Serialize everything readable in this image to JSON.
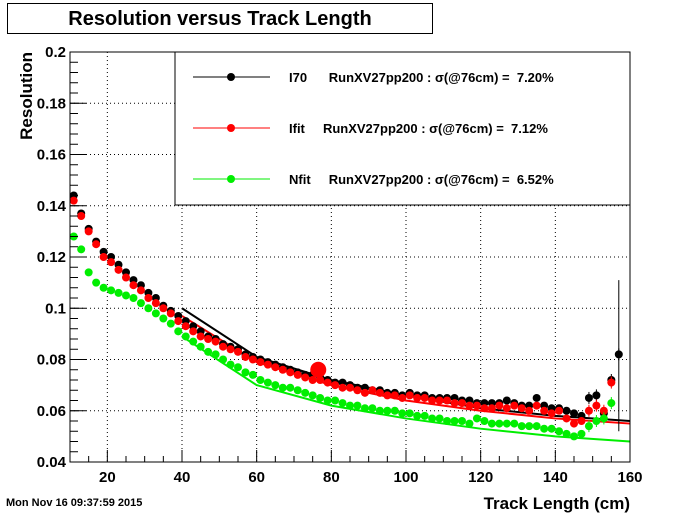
{
  "title": "Resolution versus Track Length",
  "footer_timestamp": "Mon Nov 16 09:37:59 2015",
  "chart_data": {
    "type": "scatter",
    "title": "Resolution versus Track Length",
    "xlabel": "Track Length (cm)",
    "ylabel": "Resolution",
    "xlim": [
      10,
      160
    ],
    "ylim": [
      0.04,
      0.2
    ],
    "x_ticks": [
      "20",
      "40",
      "60",
      "80",
      "100",
      "120",
      "140",
      "160"
    ],
    "y_ticks": [
      "0.04",
      "0.06",
      "0.08",
      "0.1",
      "0.12",
      "0.14",
      "0.16",
      "0.18",
      "0.2"
    ],
    "grid": true,
    "legend_position": "top-right",
    "series": [
      {
        "name": "I70",
        "legend": "I70      RunXV27pp200 : σ(@76cm) =  7.20%",
        "color": "#000000",
        "points": [
          [
            11,
            0.144
          ],
          [
            13,
            0.137
          ],
          [
            15,
            0.131
          ],
          [
            17,
            0.126
          ],
          [
            19,
            0.122
          ],
          [
            21,
            0.12
          ],
          [
            23,
            0.117
          ],
          [
            25,
            0.114
          ],
          [
            27,
            0.111
          ],
          [
            29,
            0.109
          ],
          [
            31,
            0.106
          ],
          [
            33,
            0.104
          ],
          [
            35,
            0.101
          ],
          [
            37,
            0.099
          ],
          [
            39,
            0.097
          ],
          [
            41,
            0.095
          ],
          [
            43,
            0.093
          ],
          [
            45,
            0.091
          ],
          [
            47,
            0.089
          ],
          [
            49,
            0.088
          ],
          [
            51,
            0.086
          ],
          [
            53,
            0.085
          ],
          [
            55,
            0.084
          ],
          [
            57,
            0.082
          ],
          [
            59,
            0.081
          ],
          [
            61,
            0.08
          ],
          [
            63,
            0.079
          ],
          [
            65,
            0.078
          ],
          [
            67,
            0.077
          ],
          [
            69,
            0.076
          ],
          [
            71,
            0.075
          ],
          [
            73,
            0.074
          ],
          [
            75,
            0.074
          ],
          [
            77,
            0.073
          ],
          [
            79,
            0.072
          ],
          [
            81,
            0.071
          ],
          [
            83,
            0.071
          ],
          [
            85,
            0.07
          ],
          [
            87,
            0.069
          ],
          [
            89,
            0.069
          ],
          [
            91,
            0.068
          ],
          [
            93,
            0.068
          ],
          [
            95,
            0.067
          ],
          [
            97,
            0.067
          ],
          [
            99,
            0.066
          ],
          [
            101,
            0.067
          ],
          [
            103,
            0.066
          ],
          [
            105,
            0.066
          ],
          [
            107,
            0.065
          ],
          [
            109,
            0.065
          ],
          [
            111,
            0.065
          ],
          [
            113,
            0.065
          ],
          [
            115,
            0.064
          ],
          [
            117,
            0.064
          ],
          [
            119,
            0.063
          ],
          [
            121,
            0.063
          ],
          [
            123,
            0.063
          ],
          [
            125,
            0.063
          ],
          [
            127,
            0.064
          ],
          [
            129,
            0.063
          ],
          [
            131,
            0.062
          ],
          [
            133,
            0.062
          ],
          [
            135,
            0.065
          ],
          [
            137,
            0.062
          ],
          [
            139,
            0.061
          ],
          [
            141,
            0.061
          ],
          [
            143,
            0.06
          ],
          [
            145,
            0.059
          ],
          [
            147,
            0.058
          ],
          [
            149,
            0.065
          ],
          [
            151,
            0.066
          ],
          [
            153,
            0.059
          ],
          [
            155,
            0.072
          ],
          [
            157,
            0.082
          ]
        ],
        "fit": [
          [
            40,
            0.1
          ],
          [
            60,
            0.081
          ],
          [
            80,
            0.072
          ],
          [
            100,
            0.066
          ],
          [
            120,
            0.061
          ],
          [
            140,
            0.058
          ],
          [
            160,
            0.056
          ]
        ]
      },
      {
        "name": "Ifit",
        "legend": "Ifit     RunXV27pp200 : σ(@76cm) =  7.12%",
        "color": "#ff0000",
        "highlight": [
          76.5,
          0.076
        ],
        "points": [
          [
            11,
            0.142
          ],
          [
            13,
            0.136
          ],
          [
            15,
            0.13
          ],
          [
            17,
            0.125
          ],
          [
            19,
            0.12
          ],
          [
            21,
            0.118
          ],
          [
            23,
            0.115
          ],
          [
            25,
            0.112
          ],
          [
            27,
            0.109
          ],
          [
            29,
            0.107
          ],
          [
            31,
            0.104
          ],
          [
            33,
            0.102
          ],
          [
            35,
            0.1
          ],
          [
            37,
            0.098
          ],
          [
            39,
            0.095
          ],
          [
            41,
            0.093
          ],
          [
            43,
            0.091
          ],
          [
            45,
            0.089
          ],
          [
            47,
            0.088
          ],
          [
            49,
            0.087
          ],
          [
            51,
            0.085
          ],
          [
            53,
            0.084
          ],
          [
            55,
            0.083
          ],
          [
            57,
            0.081
          ],
          [
            59,
            0.08
          ],
          [
            61,
            0.079
          ],
          [
            63,
            0.078
          ],
          [
            65,
            0.077
          ],
          [
            67,
            0.076
          ],
          [
            69,
            0.075
          ],
          [
            71,
            0.074
          ],
          [
            73,
            0.073
          ],
          [
            75,
            0.072
          ],
          [
            77,
            0.072
          ],
          [
            79,
            0.071
          ],
          [
            81,
            0.07
          ],
          [
            83,
            0.069
          ],
          [
            85,
            0.069
          ],
          [
            87,
            0.068
          ],
          [
            89,
            0.067
          ],
          [
            91,
            0.068
          ],
          [
            93,
            0.067
          ],
          [
            95,
            0.066
          ],
          [
            97,
            0.066
          ],
          [
            99,
            0.065
          ],
          [
            101,
            0.066
          ],
          [
            103,
            0.065
          ],
          [
            105,
            0.065
          ],
          [
            107,
            0.064
          ],
          [
            109,
            0.064
          ],
          [
            111,
            0.064
          ],
          [
            113,
            0.063
          ],
          [
            115,
            0.063
          ],
          [
            117,
            0.062
          ],
          [
            119,
            0.062
          ],
          [
            121,
            0.061
          ],
          [
            123,
            0.061
          ],
          [
            125,
            0.062
          ],
          [
            127,
            0.061
          ],
          [
            129,
            0.062
          ],
          [
            131,
            0.061
          ],
          [
            133,
            0.06
          ],
          [
            135,
            0.062
          ],
          [
            137,
            0.06
          ],
          [
            139,
            0.059
          ],
          [
            141,
            0.06
          ],
          [
            143,
            0.057
          ],
          [
            145,
            0.055
          ],
          [
            147,
            0.056
          ],
          [
            149,
            0.06
          ],
          [
            151,
            0.062
          ],
          [
            153,
            0.06
          ],
          [
            155,
            0.071
          ]
        ],
        "fit": [
          [
            40,
            0.097
          ],
          [
            60,
            0.079
          ],
          [
            80,
            0.07
          ],
          [
            100,
            0.064
          ],
          [
            120,
            0.06
          ],
          [
            140,
            0.057
          ],
          [
            160,
            0.055
          ]
        ]
      },
      {
        "name": "Nfit",
        "legend": "Nfit     RunXV27pp200 : σ(@76cm) =  6.52%",
        "color": "#00ee00",
        "points": [
          [
            11,
            0.128
          ],
          [
            13,
            0.123
          ],
          [
            15,
            0.114
          ],
          [
            17,
            0.11
          ],
          [
            19,
            0.108
          ],
          [
            21,
            0.107
          ],
          [
            23,
            0.106
          ],
          [
            25,
            0.105
          ],
          [
            27,
            0.104
          ],
          [
            29,
            0.102
          ],
          [
            31,
            0.1
          ],
          [
            33,
            0.098
          ],
          [
            35,
            0.096
          ],
          [
            37,
            0.094
          ],
          [
            39,
            0.091
          ],
          [
            41,
            0.089
          ],
          [
            43,
            0.087
          ],
          [
            45,
            0.085
          ],
          [
            47,
            0.083
          ],
          [
            49,
            0.082
          ],
          [
            51,
            0.08
          ],
          [
            53,
            0.078
          ],
          [
            55,
            0.077
          ],
          [
            57,
            0.075
          ],
          [
            59,
            0.074
          ],
          [
            61,
            0.072
          ],
          [
            63,
            0.071
          ],
          [
            65,
            0.07
          ],
          [
            67,
            0.069
          ],
          [
            69,
            0.069
          ],
          [
            71,
            0.068
          ],
          [
            73,
            0.067
          ],
          [
            75,
            0.066
          ],
          [
            77,
            0.065
          ],
          [
            79,
            0.064
          ],
          [
            81,
            0.064
          ],
          [
            83,
            0.063
          ],
          [
            85,
            0.062
          ],
          [
            87,
            0.062
          ],
          [
            89,
            0.061
          ],
          [
            91,
            0.061
          ],
          [
            93,
            0.06
          ],
          [
            95,
            0.06
          ],
          [
            97,
            0.06
          ],
          [
            99,
            0.059
          ],
          [
            101,
            0.059
          ],
          [
            103,
            0.058
          ],
          [
            105,
            0.058
          ],
          [
            107,
            0.057
          ],
          [
            109,
            0.057
          ],
          [
            111,
            0.056
          ],
          [
            113,
            0.056
          ],
          [
            115,
            0.056
          ],
          [
            117,
            0.055
          ],
          [
            119,
            0.057
          ],
          [
            121,
            0.056
          ],
          [
            123,
            0.055
          ],
          [
            125,
            0.055
          ],
          [
            127,
            0.055
          ],
          [
            129,
            0.055
          ],
          [
            131,
            0.054
          ],
          [
            133,
            0.054
          ],
          [
            135,
            0.054
          ],
          [
            137,
            0.053
          ],
          [
            139,
            0.053
          ],
          [
            141,
            0.052
          ],
          [
            143,
            0.051
          ],
          [
            145,
            0.05
          ],
          [
            147,
            0.051
          ],
          [
            149,
            0.054
          ],
          [
            151,
            0.056
          ],
          [
            153,
            0.057
          ],
          [
            155,
            0.063
          ]
        ],
        "fit": [
          [
            40,
            0.089
          ],
          [
            60,
            0.07
          ],
          [
            80,
            0.062
          ],
          [
            100,
            0.057
          ],
          [
            120,
            0.053
          ],
          [
            140,
            0.05
          ],
          [
            160,
            0.048
          ]
        ]
      }
    ]
  }
}
